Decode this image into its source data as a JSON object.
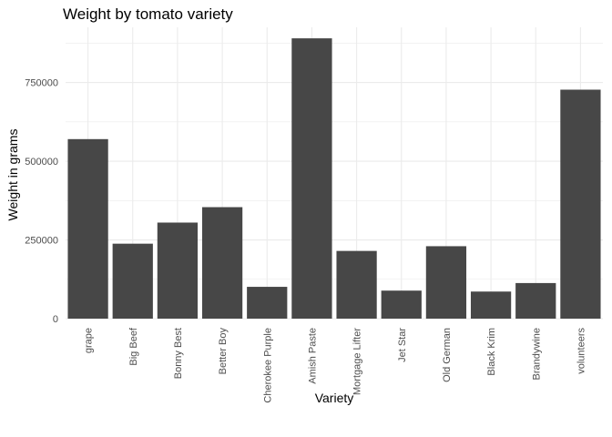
{
  "chart_data": {
    "type": "bar",
    "title": "Weight by tomato variety",
    "xlabel": "Variety",
    "ylabel": "Weight in grams",
    "categories": [
      "grape",
      "Big Beef",
      "Bonny Best",
      "Better Boy",
      "Cherokee Purple",
      "Amish Paste",
      "Mortgage Lifter",
      "Jet Star",
      "Old German",
      "Black Krim",
      "Brandywine",
      "volunteers"
    ],
    "values": [
      570000,
      238000,
      305000,
      354000,
      101000,
      890000,
      215000,
      89000,
      230000,
      86000,
      113000,
      727000
    ],
    "ylim": [
      0,
      925000
    ],
    "yticks": [
      0,
      250000,
      500000,
      750000
    ],
    "ytick_labels": [
      "0",
      "250000",
      "500000",
      "750000"
    ],
    "grid": true,
    "bar_color": "#474747",
    "grid_color": "#ebebeb"
  }
}
